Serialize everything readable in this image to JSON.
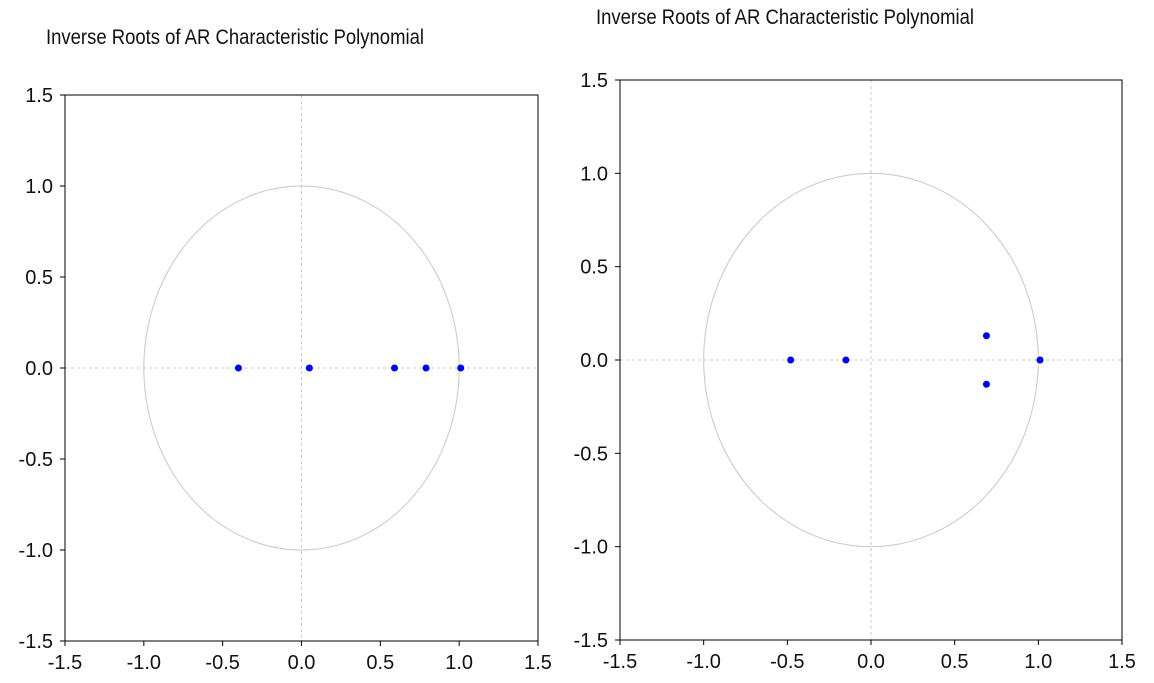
{
  "chart_data": [
    {
      "type": "scatter",
      "title": "Inverse Roots of AR Characteristic Polynomial",
      "xlim": [
        -1.5,
        1.5
      ],
      "ylim": [
        -1.5,
        1.5
      ],
      "xticks": [
        -1.5,
        -1.0,
        -0.5,
        0.0,
        0.5,
        1.0,
        1.5
      ],
      "yticks": [
        -1.5,
        -1.0,
        -0.5,
        0.0,
        0.5,
        1.0,
        1.5
      ],
      "xtick_labels": [
        "-1.5",
        "-1.0",
        "-0.5",
        "0.0",
        "0.5",
        "1.0",
        "1.5"
      ],
      "ytick_labels": [
        "-1.5",
        "-1.0",
        "-0.5",
        "0.0",
        "0.5",
        "1.0",
        "1.5"
      ],
      "unit_circle": true,
      "grid": false,
      "points": [
        {
          "x": -0.4,
          "y": 0.0
        },
        {
          "x": 0.05,
          "y": 0.0
        },
        {
          "x": 0.59,
          "y": 0.0
        },
        {
          "x": 0.79,
          "y": 0.0
        },
        {
          "x": 1.01,
          "y": 0.0
        }
      ],
      "colors": {
        "point": "#0000ff",
        "circle": "#c8c8c8",
        "axis": "#000000"
      }
    },
    {
      "type": "scatter",
      "title": "Inverse Roots of AR Characteristic Polynomial",
      "xlim": [
        -1.5,
        1.5
      ],
      "ylim": [
        -1.5,
        1.5
      ],
      "xticks": [
        -1.5,
        -1.0,
        -0.5,
        0.0,
        0.5,
        1.0,
        1.5
      ],
      "yticks": [
        -1.5,
        -1.0,
        -0.5,
        0.0,
        0.5,
        1.0,
        1.5
      ],
      "xtick_labels": [
        "-1.5",
        "-1.0",
        "-0.5",
        "0.0",
        "0.5",
        "1.0",
        "1.5"
      ],
      "ytick_labels": [
        "-1.5",
        "-1.0",
        "-0.5",
        "0.0",
        "0.5",
        "1.0",
        "1.5"
      ],
      "unit_circle": true,
      "grid": false,
      "points": [
        {
          "x": -0.48,
          "y": 0.0
        },
        {
          "x": -0.15,
          "y": 0.0
        },
        {
          "x": 0.69,
          "y": 0.13
        },
        {
          "x": 0.69,
          "y": -0.13
        },
        {
          "x": 1.01,
          "y": 0.0
        }
      ],
      "colors": {
        "point": "#0000ff",
        "circle": "#c8c8c8",
        "axis": "#000000"
      }
    }
  ]
}
